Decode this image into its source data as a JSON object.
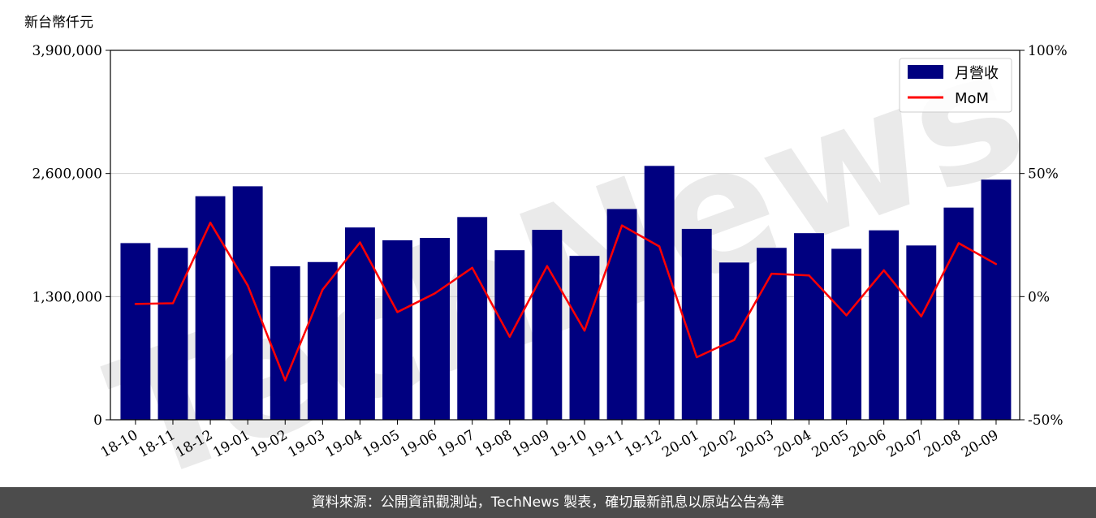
{
  "chart_data": {
    "type": "bar",
    "unit_label": "新台幣仟元",
    "categories": [
      "18-10",
      "18-11",
      "18-12",
      "19-01",
      "19-02",
      "19-03",
      "19-04",
      "19-05",
      "19-06",
      "19-07",
      "19-08",
      "19-09",
      "19-10",
      "19-11",
      "19-12",
      "20-01",
      "20-02",
      "20-03",
      "20-04",
      "20-05",
      "20-06",
      "20-07",
      "20-08",
      "20-09"
    ],
    "series": [
      {
        "name": "月營收",
        "axis": "left",
        "color": "#000080",
        "values": [
          1865000,
          1815000,
          2360000,
          2465000,
          1620000,
          1665000,
          2030000,
          1895000,
          1920000,
          2140000,
          1790000,
          2005000,
          1730000,
          2225000,
          2680000,
          2015000,
          1660000,
          1815000,
          1970000,
          1805000,
          2000000,
          1840000,
          2240000,
          2535000
        ]
      },
      {
        "name": "MoM",
        "axis": "right",
        "type": "line",
        "color": "#ff0000",
        "values": [
          -3,
          -2.7,
          30,
          4.5,
          -34,
          2.8,
          22,
          -6.3,
          1.3,
          11.7,
          -16.3,
          12.4,
          -13.8,
          28.9,
          20.4,
          -24.6,
          -17.6,
          9.3,
          8.6,
          -7.6,
          10.7,
          -8,
          21.7,
          13.2
        ]
      }
    ],
    "ylim": [
      0,
      3900000
    ],
    "yticks": [
      "0",
      "1,300,000",
      "2,600,000",
      "3,900,000"
    ],
    "ytick_values": [
      0,
      1300000,
      2600000,
      3900000
    ],
    "y2lim": [
      -50,
      100
    ],
    "y2ticks": [
      "-50%",
      "0%",
      "50%",
      "100%"
    ],
    "y2tick_values": [
      -50,
      0,
      50,
      100
    ],
    "grid": "horizontal",
    "legend_position": "top-right"
  },
  "watermark_text": "TechNews",
  "footer_text": "資料來源：公開資訊觀測站，TechNews 製表，確切最新訊息以原站公告為準"
}
